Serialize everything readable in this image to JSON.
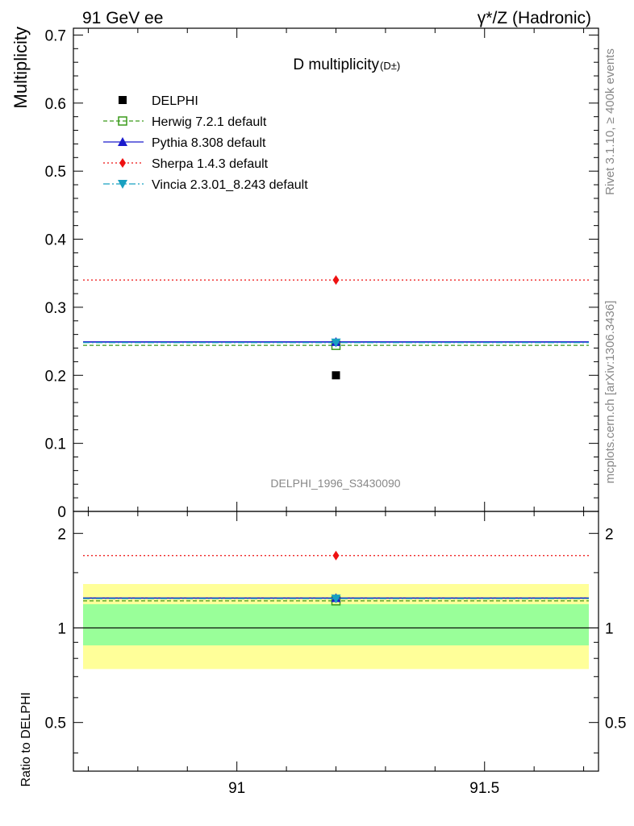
{
  "header": {
    "left": "91 GeV ee",
    "right": "γ*/Z (Hadronic)"
  },
  "side_text": {
    "rivet": "Rivet 3.1.10, ≥ 400k events",
    "mcplots": "mcplots.cern.ch [arXiv:1306.3436]"
  },
  "colors": {
    "data": "#000000",
    "herwig": "#3a9a1a",
    "pythia": "#1a1acc",
    "sherpa": "#ee1111",
    "vincia": "#19a0c0",
    "band_outer": "#ffff99",
    "band_inner": "#99ff99"
  },
  "chart_data": [
    {
      "type": "scatter",
      "title": "D multiplicity",
      "title_sub": "(D±)",
      "ylabel": "Multiplicity",
      "xlabel": "",
      "ylim": [
        0,
        0.71
      ],
      "xlim": [
        90.67,
        91.73
      ],
      "y_ticks": [
        "0",
        "0.1",
        "0.2",
        "0.3",
        "0.4",
        "0.5",
        "0.6",
        "0.7"
      ],
      "watermark": "DELPHI_1996_S3430090",
      "x_range": [
        90.7,
        91.7
      ],
      "x_point": 91.2,
      "legend_position": "top-left",
      "series": [
        {
          "name": "DELPHI",
          "key": "data",
          "value": 0.2,
          "style": "data"
        },
        {
          "name": "Herwig 7.2.1 default",
          "key": "herwig",
          "value": 0.244,
          "style": "dashed",
          "marker": "open-square"
        },
        {
          "name": "Pythia 8.308 default",
          "key": "pythia",
          "value": 0.249,
          "style": "solid",
          "marker": "triangle-up"
        },
        {
          "name": "Sherpa 1.4.3 default",
          "key": "sherpa",
          "value": 0.34,
          "style": "dotted",
          "marker": "diamond"
        },
        {
          "name": "Vincia 2.3.01_8.243 default",
          "key": "vincia",
          "value": 0.248,
          "style": "dashdot",
          "marker": "triangle-down"
        }
      ]
    },
    {
      "type": "scatter",
      "title": "",
      "ylabel": "Ratio to DELPHI",
      "xlabel": "",
      "ylim": [
        0.35,
        2.35
      ],
      "xlim": [
        90.67,
        91.73
      ],
      "y_ticks": [
        "0.5",
        "1",
        "2"
      ],
      "x_ticks": [
        "91",
        "91.5"
      ],
      "bands": {
        "outer": [
          0.74,
          1.38
        ],
        "inner": [
          0.88,
          1.19
        ]
      },
      "series": [
        {
          "name": "Herwig 7.2.1 default",
          "key": "herwig",
          "value": 1.22,
          "style": "dashed",
          "marker": "open-square"
        },
        {
          "name": "Pythia 8.308 default",
          "key": "pythia",
          "value": 1.245,
          "style": "solid",
          "marker": "triangle-up"
        },
        {
          "name": "Sherpa 1.4.3 default",
          "key": "sherpa",
          "value": 1.7,
          "style": "dotted",
          "marker": "diamond"
        },
        {
          "name": "Vincia 2.3.01_8.243 default",
          "key": "vincia",
          "value": 1.24,
          "style": "dashdot",
          "marker": "triangle-down"
        }
      ]
    }
  ]
}
